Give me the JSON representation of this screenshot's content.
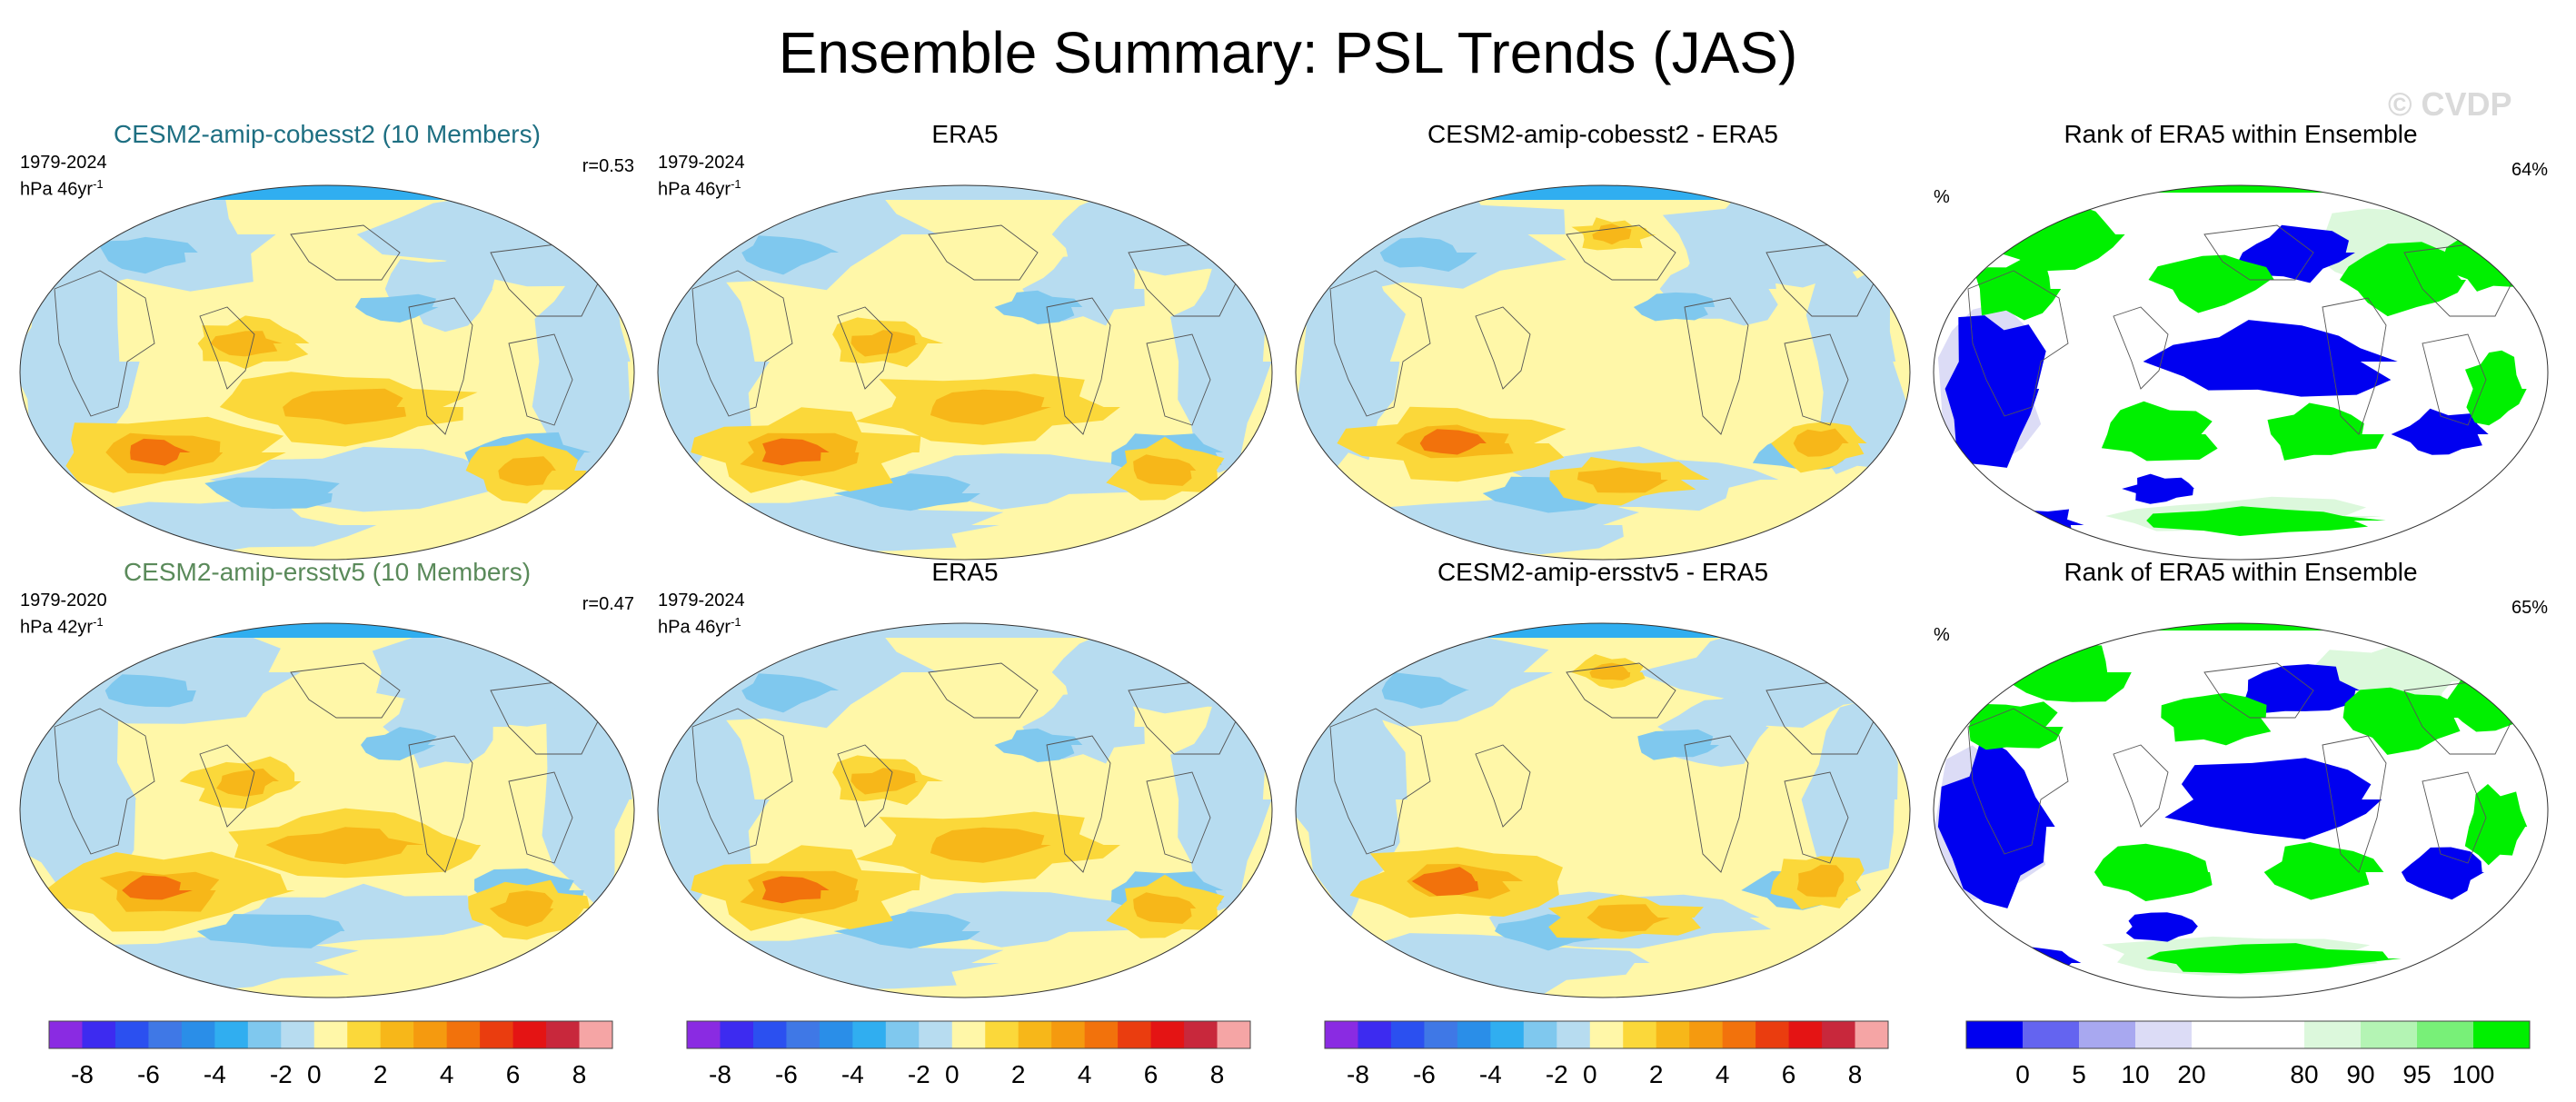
{
  "title": "Ensemble Summary: PSL Trends (JAS)",
  "watermark": "© CVDP",
  "colors": {
    "model1_title": "#1e6f82",
    "model2_title": "#5a8a5a",
    "ocean_blue": "#b7dcf0",
    "ocean_yellow": "#fff7a8",
    "rank_blue": "#0000f0",
    "rank_green": "#00f000"
  },
  "rows": [
    {
      "panels": [
        {
          "title": "CESM2-amip-cobesst2 (10 Members)",
          "period": "1979-2024",
          "units": "hPa 46yr",
          "units_sup": "-1",
          "stat": "r=0.53",
          "kind": "model"
        },
        {
          "title": "ERA5",
          "period": "1979-2024",
          "units": "hPa 46yr",
          "units_sup": "-1",
          "stat": "",
          "kind": "obs"
        },
        {
          "title": "CESM2-amip-cobesst2 - ERA5",
          "period": "",
          "units": "",
          "units_sup": "",
          "stat": "",
          "kind": "diff"
        },
        {
          "title": "Rank of ERA5 within Ensemble",
          "period": "%",
          "units": "",
          "units_sup": "",
          "stat": "64%",
          "kind": "rank"
        }
      ]
    },
    {
      "panels": [
        {
          "title": "CESM2-amip-ersstv5 (10 Members)",
          "period": "1979-2020",
          "units": "hPa 42yr",
          "units_sup": "-1",
          "stat": "r=0.47",
          "kind": "model"
        },
        {
          "title": "ERA5",
          "period": "1979-2024",
          "units": "hPa 46yr",
          "units_sup": "-1",
          "stat": "",
          "kind": "obs"
        },
        {
          "title": "CESM2-amip-ersstv5 - ERA5",
          "period": "",
          "units": "",
          "units_sup": "",
          "stat": "",
          "kind": "diff"
        },
        {
          "title": "Rank of ERA5 within Ensemble",
          "period": "%",
          "units": "",
          "units_sup": "",
          "stat": "65%",
          "kind": "rank"
        }
      ]
    }
  ],
  "colorbars": {
    "trend": {
      "colors": [
        "#8a2be2",
        "#3d2bf0",
        "#2b50f0",
        "#3f78e6",
        "#2a8ee8",
        "#30aef0",
        "#7fc8ee",
        "#b7dcf0",
        "#fff7a8",
        "#fbd83a",
        "#f7b719",
        "#f59a0f",
        "#f2720c",
        "#ea3d0f",
        "#e41414",
        "#c8283c",
        "#f5a5a5"
      ],
      "labels": [
        "-8",
        "-6",
        "-4",
        "-2",
        "0",
        "2",
        "4",
        "6",
        "8"
      ]
    },
    "rank": {
      "colors": [
        "#0000f0",
        "#6464f0",
        "#a8a8f0",
        "#dcdcf6",
        "#ffffff",
        "#ffffff",
        "#dcf8dc",
        "#b4f4b4",
        "#78f078",
        "#00f000"
      ],
      "labels": [
        "0",
        "5",
        "10",
        "20",
        "80",
        "90",
        "95",
        "100"
      ]
    }
  }
}
